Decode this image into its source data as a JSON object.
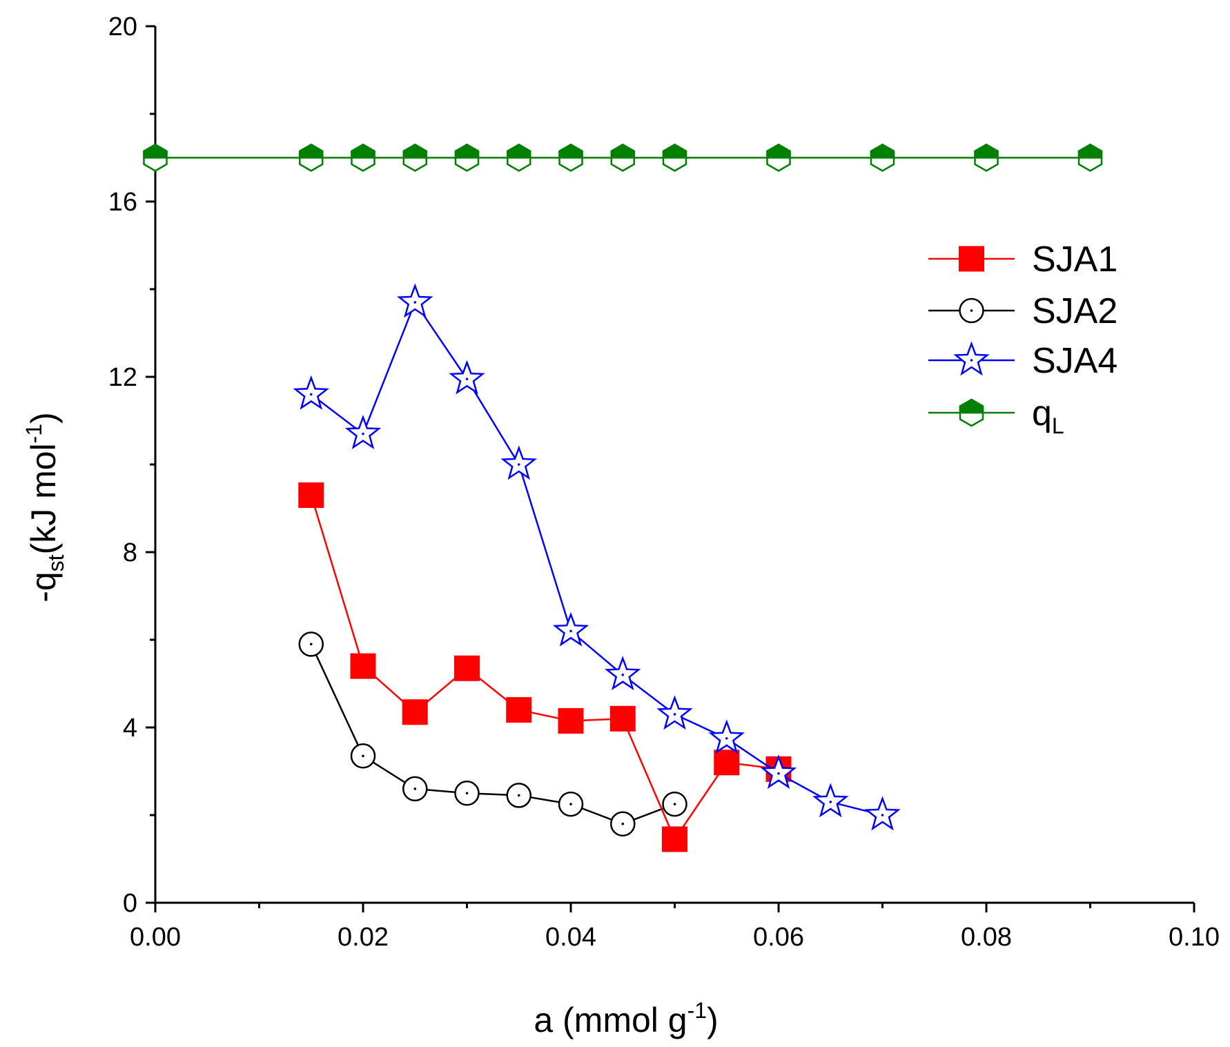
{
  "chart_data": {
    "type": "line",
    "title": "",
    "xlabel": {
      "main": "a (mmol g",
      "sup": "-1",
      "close": ")"
    },
    "ylabel": {
      "pre": "-q",
      "sub": "st",
      "mid": "(kJ mol",
      "sup": "-1",
      "close": ")"
    },
    "xlim": [
      0.0,
      0.1
    ],
    "ylim": [
      0,
      20
    ],
    "x_ticks": [
      "0.00",
      "0.02",
      "0.04",
      "0.06",
      "0.08",
      "0.10"
    ],
    "y_ticks": [
      "0",
      "4",
      "8",
      "12",
      "16",
      "20"
    ],
    "grid": false,
    "legend_position": "right",
    "series": [
      {
        "name": "SJA1",
        "color": "#ff0000",
        "marker": "filled-square",
        "x": [
          0.015,
          0.02,
          0.025,
          0.03,
          0.035,
          0.04,
          0.045,
          0.05,
          0.055,
          0.06
        ],
        "y": [
          9.3,
          5.4,
          4.35,
          5.35,
          4.4,
          4.15,
          4.2,
          1.45,
          3.2,
          3.05
        ]
      },
      {
        "name": "SJA2",
        "color": "#000000",
        "marker": "open-circle-dot",
        "x": [
          0.015,
          0.02,
          0.025,
          0.03,
          0.035,
          0.04,
          0.045,
          0.05
        ],
        "y": [
          5.9,
          3.35,
          2.6,
          2.5,
          2.45,
          2.25,
          1.8,
          2.25
        ]
      },
      {
        "name": "SJA4",
        "color": "#0000ff",
        "marker": "open-star-dot",
        "x": [
          0.015,
          0.02,
          0.025,
          0.03,
          0.035,
          0.04,
          0.045,
          0.05,
          0.055,
          0.06,
          0.065,
          0.07
        ],
        "y": [
          11.6,
          10.7,
          13.7,
          11.95,
          10.0,
          6.2,
          5.2,
          4.3,
          3.75,
          2.95,
          2.3,
          2.0
        ]
      },
      {
        "name": "q",
        "name_sub": "L",
        "color": "#008000",
        "marker": "half-filled-hexagon",
        "x": [
          0.0,
          0.015,
          0.02,
          0.025,
          0.03,
          0.035,
          0.04,
          0.045,
          0.05,
          0.06,
          0.07,
          0.08,
          0.09
        ],
        "y": [
          17,
          17,
          17,
          17,
          17,
          17,
          17,
          17,
          17,
          17,
          17,
          17,
          17
        ]
      }
    ]
  }
}
